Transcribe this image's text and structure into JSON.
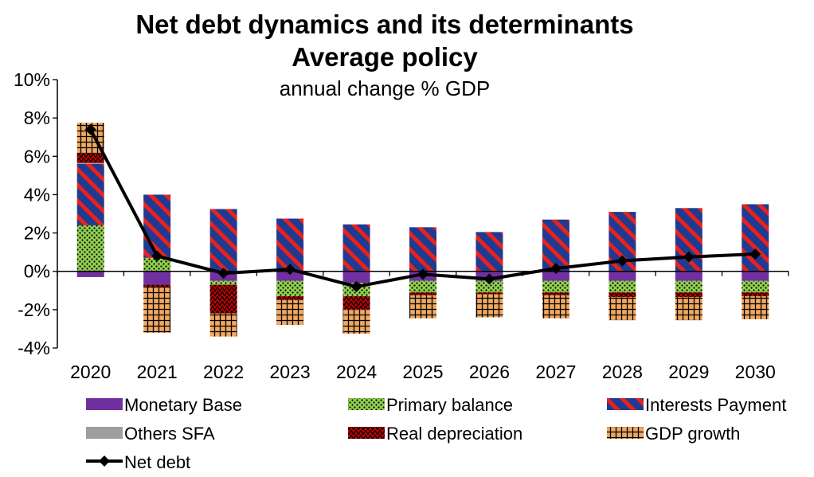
{
  "chart_data": {
    "type": "bar",
    "title": "Net debt dynamics and its determinants",
    "subtitle": "Average policy",
    "ylabel": "annual change % GDP",
    "xlabel": "",
    "ylim": [
      -4,
      10
    ],
    "yticks": [
      -4,
      -2,
      0,
      2,
      4,
      6,
      8,
      10
    ],
    "ytick_labels": [
      "-4%",
      "-2%",
      "0%",
      "2%",
      "4%",
      "6%",
      "8%",
      "10%"
    ],
    "categories": [
      "2020",
      "2021",
      "2022",
      "2023",
      "2024",
      "2025",
      "2026",
      "2027",
      "2028",
      "2029",
      "2030"
    ],
    "stacked": true,
    "legend_position": "bottom",
    "grid": false,
    "series": [
      {
        "name": "Monetary Base",
        "pattern": "solid",
        "color": "#7030a0",
        "values": [
          -0.3,
          -0.7,
          -0.5,
          -0.5,
          -0.6,
          -0.5,
          -0.5,
          -0.5,
          -0.5,
          -0.5,
          -0.5
        ]
      },
      {
        "name": "Primary balance",
        "pattern": "dots",
        "color": "#92d050",
        "values": [
          2.4,
          0.7,
          -0.2,
          -0.8,
          -0.7,
          -0.6,
          -0.6,
          -0.6,
          -0.6,
          -0.6,
          -0.6
        ]
      },
      {
        "name": "Interests Payment",
        "pattern": "diagonal-stripes",
        "color": "#1f3a93",
        "color2": "#e8221b",
        "values": [
          3.2,
          3.3,
          3.25,
          2.75,
          2.45,
          2.3,
          2.05,
          2.7,
          3.1,
          3.3,
          3.5
        ]
      },
      {
        "name": "Others SFA",
        "pattern": "solid",
        "color": "#9e9e9e",
        "values": [
          0.05,
          0,
          0,
          0,
          0,
          0,
          0,
          0,
          0,
          0,
          0
        ]
      },
      {
        "name": "Real depreciation",
        "pattern": "zigzag",
        "color": "#c00000",
        "values": [
          0.5,
          -0.1,
          -1.5,
          -0.2,
          -0.7,
          -0.15,
          -0.1,
          -0.15,
          -0.25,
          -0.25,
          -0.2
        ]
      },
      {
        "name": "GDP growth",
        "pattern": "grid",
        "color": "#f0a860",
        "values": [
          1.6,
          -2.4,
          -1.2,
          -1.3,
          -1.25,
          -1.2,
          -1.2,
          -1.2,
          -1.2,
          -1.2,
          -1.2
        ]
      }
    ],
    "line_series": {
      "name": "Net debt",
      "color": "#000000",
      "marker": "diamond",
      "values": [
        7.4,
        0.8,
        -0.1,
        0.1,
        -0.8,
        -0.15,
        -0.4,
        0.15,
        0.55,
        0.75,
        0.9
      ]
    }
  }
}
